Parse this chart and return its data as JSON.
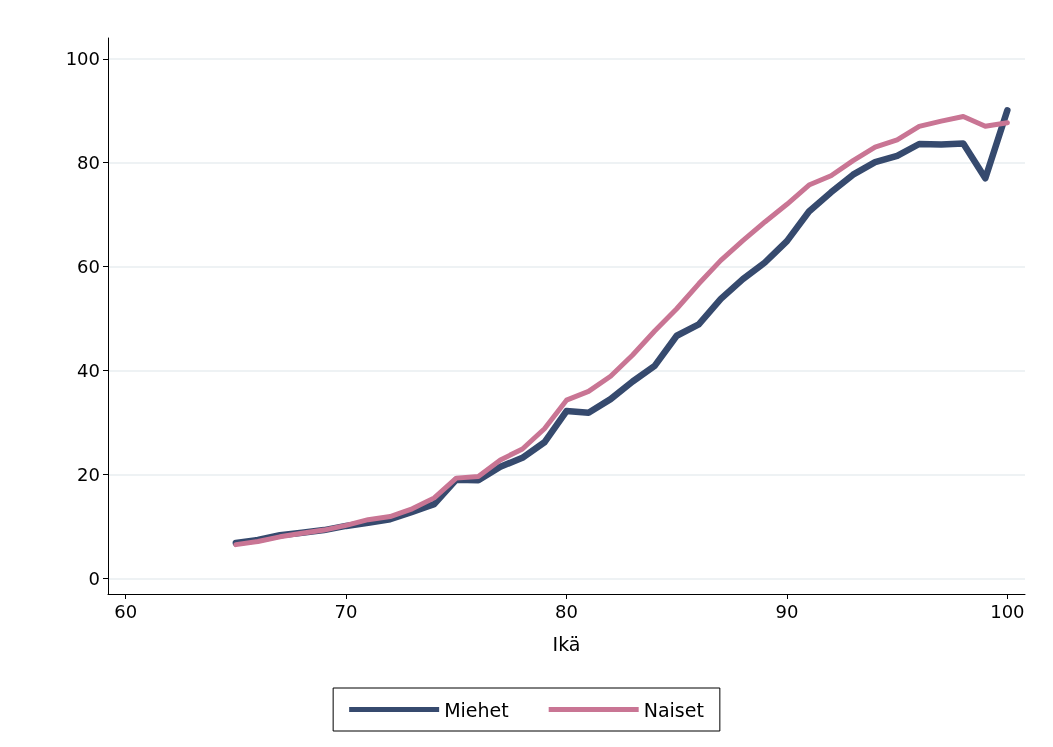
{
  "chart_data": {
    "type": "line",
    "xlabel": "Ikä",
    "x": [
      65,
      66,
      67,
      68,
      69,
      70,
      71,
      72,
      73,
      74,
      75,
      76,
      77,
      78,
      79,
      80,
      81,
      82,
      83,
      84,
      85,
      86,
      87,
      88,
      89,
      90,
      91,
      92,
      93,
      94,
      95,
      96,
      97,
      98,
      99,
      100
    ],
    "series": [
      {
        "name": "Miehet",
        "color": "#364a6e",
        "values": [
          6.8,
          7.4,
          8.3,
          8.8,
          9.3,
          10.1,
          10.7,
          11.4,
          12.8,
          14.3,
          19.0,
          18.9,
          21.5,
          23.2,
          26.2,
          32.2,
          31.9,
          34.5,
          37.9,
          40.9,
          46.7,
          48.9,
          53.8,
          57.6,
          60.8,
          64.9,
          70.6,
          74.3,
          77.7,
          80.1,
          81.3,
          83.6,
          83.5,
          83.7,
          77.0,
          90.1
        ]
      },
      {
        "name": "Naiset",
        "color": "#c97594",
        "values": [
          6.5,
          7.1,
          8.0,
          8.7,
          9.3,
          10.2,
          11.3,
          11.9,
          13.4,
          15.5,
          19.3,
          19.6,
          22.8,
          24.9,
          28.8,
          34.3,
          36.0,
          38.9,
          43.0,
          47.6,
          51.9,
          56.7,
          61.2,
          65.0,
          68.6,
          72.0,
          75.7,
          77.5,
          80.4,
          83.0,
          84.4,
          87.0,
          88.0,
          88.9,
          87.0,
          87.7
        ]
      }
    ],
    "xlim": [
      59.2,
      100.8
    ],
    "xticks": [
      60,
      70,
      80,
      90,
      100
    ],
    "ylim": [
      -3,
      104
    ],
    "yticks": [
      0,
      20,
      40,
      60,
      80,
      100
    ],
    "grid": "y",
    "legend": "bottom",
    "marker": "none",
    "line_style": "solid"
  }
}
